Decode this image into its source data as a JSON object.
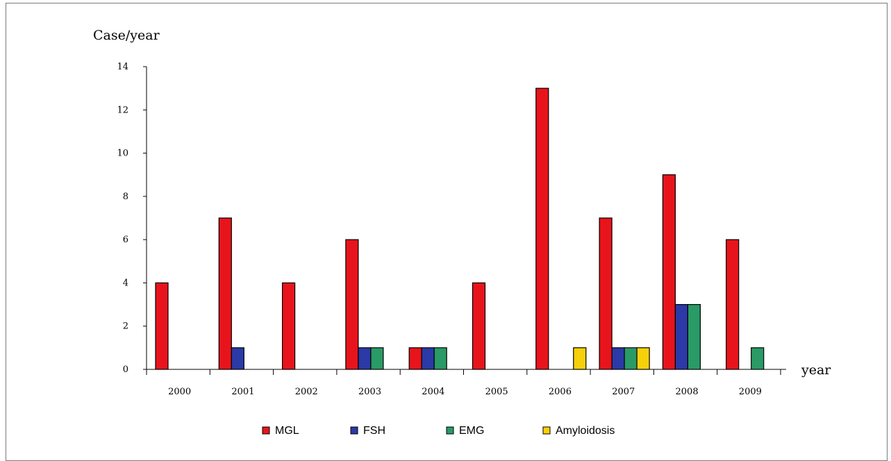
{
  "chart_data": {
    "type": "bar",
    "ylabel": "Case/year",
    "xlabel": "year",
    "categories": [
      "2000",
      "2001",
      "2002",
      "2003",
      "2004",
      "2005",
      "2006",
      "2007",
      "2008",
      "2009"
    ],
    "ylim": [
      0,
      14
    ],
    "yticks": [
      "0",
      "2",
      "4",
      "6",
      "8",
      "10",
      "12",
      "14"
    ],
    "legend_position": "bottom",
    "series": [
      {
        "name": "MGL",
        "color": "#e8141c",
        "values": [
          4,
          7,
          4,
          6,
          1,
          4,
          13,
          7,
          9,
          6
        ]
      },
      {
        "name": "FSH",
        "color": "#2b3aa6",
        "values": [
          0,
          1,
          0,
          1,
          1,
          0,
          0,
          1,
          3,
          0
        ]
      },
      {
        "name": "EMG",
        "color": "#2a9a66",
        "values": [
          0,
          0,
          0,
          1,
          1,
          0,
          0,
          1,
          3,
          1
        ]
      },
      {
        "name": "Amyloidosis",
        "color": "#f6d10b",
        "values": [
          0,
          0,
          0,
          0,
          0,
          0,
          1,
          1,
          0,
          0
        ]
      }
    ]
  }
}
